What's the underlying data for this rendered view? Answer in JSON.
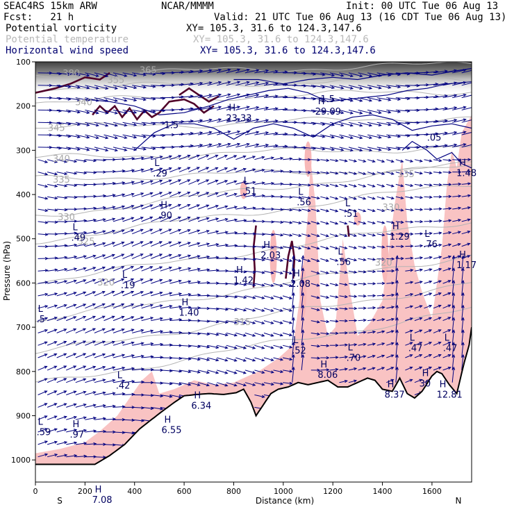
{
  "header": {
    "model": "SEAC4RS 15km ARW",
    "forecast": "Fcst:   21 h",
    "center": "NCAR/MMMM",
    "init": "Init: 00 UTC Tue 06 Aug 13",
    "valid": "Valid: 21 UTC Tue 06 Aug 13 (16 CDT Tue 06 Aug 13)",
    "fields": [
      {
        "name": "Potential vorticity",
        "xy": "XY= 105.3, 31.6 to 124.3,147.6",
        "color": "#000000"
      },
      {
        "name": "Potential temperature",
        "xy": "XY= 105.3, 31.6 to 124.3,147.6",
        "color": "#b8b8b8"
      },
      {
        "name": "Horizontal wind speed",
        "xy": "XY= 105.3, 31.6 to 124.3,147.6",
        "color": "#000070"
      }
    ]
  },
  "axes": {
    "ylabel": "Pressure (hPa)",
    "xlabel": "Distance (km)",
    "left_end": "S",
    "right_end": "N"
  },
  "colors": {
    "wind_vectors": "#000080",
    "wind_contours": "#000080",
    "pv_contours": "#500028",
    "theta_contours": "#b4b4b4",
    "pink_fill": "#f8b8b8",
    "terrain": "#000000"
  },
  "chart_data": {
    "type": "cross-section",
    "x_range": [
      0,
      1760
    ],
    "y_range": [
      1050,
      100
    ],
    "x_ticks": [
      0,
      200,
      400,
      600,
      800,
      1000,
      1200,
      1400,
      1600
    ],
    "y_ticks": [
      100,
      200,
      300,
      400,
      500,
      600,
      700,
      800,
      900,
      1000
    ],
    "theta_labels": [
      {
        "text": "380",
        "x": 110,
        "p": 125
      },
      {
        "text": "355",
        "x": 290,
        "p": 140
      },
      {
        "text": "365",
        "x": 420,
        "p": 118
      },
      {
        "text": "340",
        "x": 160,
        "p": 190
      },
      {
        "text": "345",
        "x": 50,
        "p": 248
      },
      {
        "text": "340",
        "x": 70,
        "p": 318
      },
      {
        "text": "335",
        "x": 70,
        "p": 365
      },
      {
        "text": "330",
        "x": 90,
        "p": 450
      },
      {
        "text": "325",
        "x": 170,
        "p": 505
      },
      {
        "text": "320",
        "x": 250,
        "p": 598
      },
      {
        "text": "315",
        "x": 800,
        "p": 687
      },
      {
        "text": "335",
        "x": 1460,
        "p": 353
      },
      {
        "text": "330",
        "x": 1400,
        "p": 428
      },
      {
        "text": "320",
        "x": 1370,
        "p": 553
      }
    ],
    "wind_labels": [
      {
        "text": "1.5",
        "x": 520,
        "p": 242
      },
      {
        "text": "1.5",
        "x": 1150,
        "p": 183
      },
      {
        "text": ".05",
        "x": 1580,
        "p": 270
      }
    ],
    "highs": [
      {
        "x": 780,
        "p": 220,
        "value": "23.33"
      },
      {
        "x": 1140,
        "p": 205,
        "value": "29.09"
      },
      {
        "x": 505,
        "p": 440,
        "value": ".90"
      },
      {
        "x": 920,
        "p": 530,
        "value": "2.03"
      },
      {
        "x": 810,
        "p": 587,
        "value": "1.42"
      },
      {
        "x": 1040,
        "p": 595,
        "value": "2.08"
      },
      {
        "x": 1440,
        "p": 488,
        "value": "1.29"
      },
      {
        "x": 1710,
        "p": 344,
        "value": "1.48"
      },
      {
        "x": 1710,
        "p": 552,
        "value": "1.17"
      },
      {
        "x": 590,
        "p": 660,
        "value": "1.40"
      },
      {
        "x": 1150,
        "p": 800,
        "value": "8.06"
      },
      {
        "x": 1420,
        "p": 845,
        "value": "8.37"
      },
      {
        "x": 1560,
        "p": 820,
        "value": "30"
      },
      {
        "x": 1630,
        "p": 845,
        "value": "12.81"
      },
      {
        "x": 640,
        "p": 870,
        "value": "6.34"
      },
      {
        "x": 520,
        "p": 925,
        "value": "6.55"
      },
      {
        "x": 150,
        "p": 935,
        "value": ".97"
      },
      {
        "x": 240,
        "p": 1083,
        "value": "7.08"
      }
    ],
    "lows": [
      {
        "x": 480,
        "p": 345,
        "value": ".29"
      },
      {
        "x": 840,
        "p": 385,
        "value": ".51"
      },
      {
        "x": 1060,
        "p": 410,
        "value": ".56"
      },
      {
        "x": 1250,
        "p": 436,
        "value": ".51"
      },
      {
        "x": 150,
        "p": 490,
        "value": ".49"
      },
      {
        "x": 350,
        "p": 598,
        "value": ".19"
      },
      {
        "x": 1220,
        "p": 545,
        "value": ".56"
      },
      {
        "x": 1570,
        "p": 505,
        "value": ".76"
      },
      {
        "x": 1040,
        "p": 745,
        "value": ".52"
      },
      {
        "x": 1260,
        "p": 762,
        "value": ".70"
      },
      {
        "x": 1510,
        "p": 740,
        "value": ".47"
      },
      {
        "x": 1650,
        "p": 740,
        "value": ".47"
      },
      {
        "x": 330,
        "p": 825,
        "value": ".42"
      },
      {
        "x": 10,
        "p": 930,
        "value": ".59"
      },
      {
        "x": 10,
        "p": 675,
        "value": ".5"
      }
    ],
    "terrain": [
      [
        0,
        1010
      ],
      [
        180,
        1010
      ],
      [
        240,
        1010
      ],
      [
        300,
        990
      ],
      [
        360,
        965
      ],
      [
        420,
        930
      ],
      [
        500,
        895
      ],
      [
        560,
        870
      ],
      [
        600,
        855
      ],
      [
        650,
        852
      ],
      [
        700,
        850
      ],
      [
        760,
        852
      ],
      [
        810,
        848
      ],
      [
        840,
        840
      ],
      [
        870,
        870
      ],
      [
        890,
        900
      ],
      [
        920,
        875
      ],
      [
        950,
        850
      ],
      [
        980,
        840
      ],
      [
        1020,
        835
      ],
      [
        1060,
        825
      ],
      [
        1100,
        830
      ],
      [
        1140,
        825
      ],
      [
        1180,
        820
      ],
      [
        1220,
        835
      ],
      [
        1260,
        835
      ],
      [
        1300,
        825
      ],
      [
        1340,
        815
      ],
      [
        1370,
        820
      ],
      [
        1400,
        840
      ],
      [
        1440,
        845
      ],
      [
        1470,
        815
      ],
      [
        1500,
        850
      ],
      [
        1530,
        860
      ],
      [
        1560,
        845
      ],
      [
        1600,
        810
      ],
      [
        1620,
        800
      ],
      [
        1640,
        805
      ],
      [
        1670,
        830
      ],
      [
        1700,
        850
      ],
      [
        1730,
        780
      ],
      [
        1750,
        740
      ],
      [
        1760,
        700
      ]
    ]
  }
}
